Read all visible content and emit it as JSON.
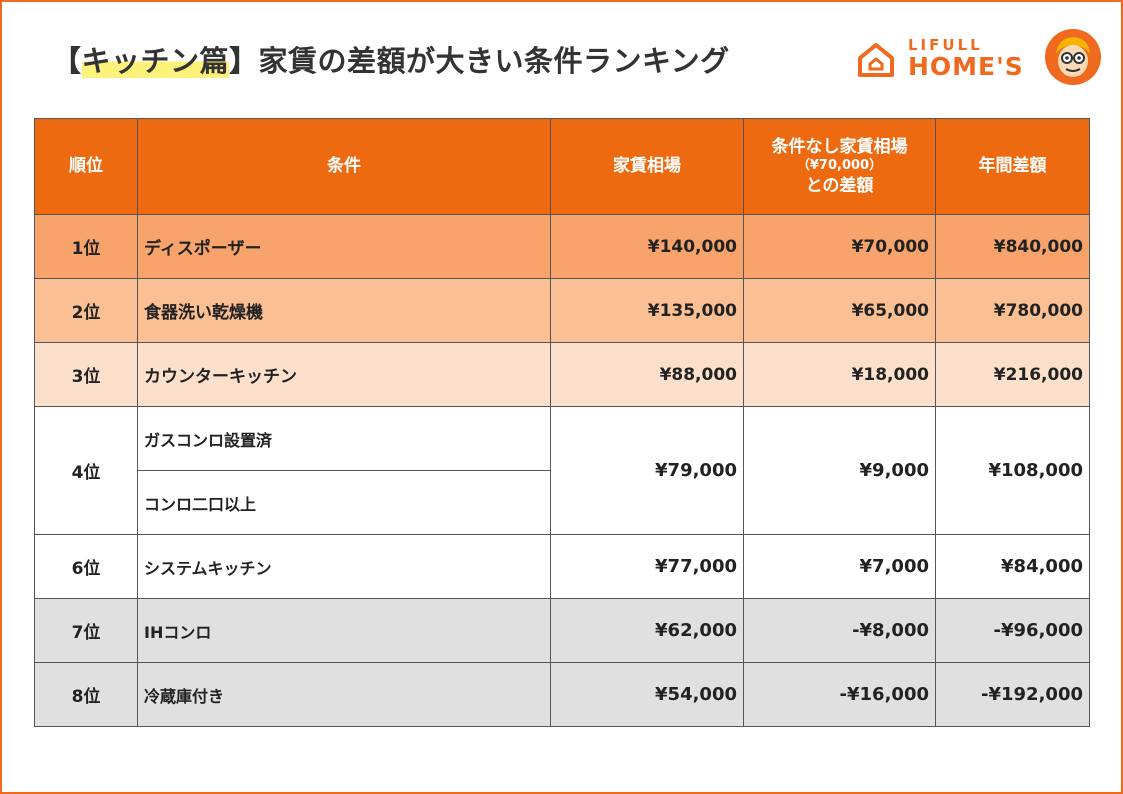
{
  "title": {
    "bracket_open": "【",
    "highlight": "キッチン篇",
    "bracket_close": "】",
    "rest": "家賃の差額が大きい条件ランキング"
  },
  "logo": {
    "line1": "LIFULL",
    "line2": "HOME'S"
  },
  "colors": {
    "accent": "#ee6a10",
    "frame": "#ef6a1f",
    "rank1_bg": "#f7a36b",
    "rank2_bg": "#fbbf94",
    "rank3_bg": "#fde0cc",
    "gray_bg": "#e0e0e0",
    "highlight": "#fff27a"
  },
  "table": {
    "headers": {
      "rank": "順位",
      "condition": "条件",
      "rent": "家賃相場",
      "diff_line1": "条件なし家賃相場",
      "diff_line2": "（¥70,000）",
      "diff_line3": "との差額",
      "annual": "年間差額"
    },
    "rows": [
      {
        "rank": "1位",
        "condition": "ディスポーザー",
        "rent": "¥140,000",
        "diff": "¥70,000",
        "annual": "¥840,000"
      },
      {
        "rank": "2位",
        "condition": "食器洗い乾燥機",
        "rent": "¥135,000",
        "diff": "¥65,000",
        "annual": "¥780,000"
      },
      {
        "rank": "3位",
        "condition": "カウンターキッチン",
        "rent": "¥88,000",
        "diff": "¥18,000",
        "annual": "¥216,000"
      },
      {
        "rank": "4位",
        "condition": "ガスコンロ設置済",
        "condition2": "コンロ二口以上",
        "rent": "¥79,000",
        "diff": "¥9,000",
        "annual": "¥108,000"
      },
      {
        "rank": "6位",
        "condition": "システムキッチン",
        "rent": "¥77,000",
        "diff": "¥7,000",
        "annual": "¥84,000"
      },
      {
        "rank": "7位",
        "condition": "IHコンロ",
        "rent": "¥62,000",
        "diff": "-¥8,000",
        "annual": "-¥96,000"
      },
      {
        "rank": "8位",
        "condition": "冷蔵庫付き",
        "rent": "¥54,000",
        "diff": "-¥16,000",
        "annual": "-¥192,000"
      }
    ]
  }
}
